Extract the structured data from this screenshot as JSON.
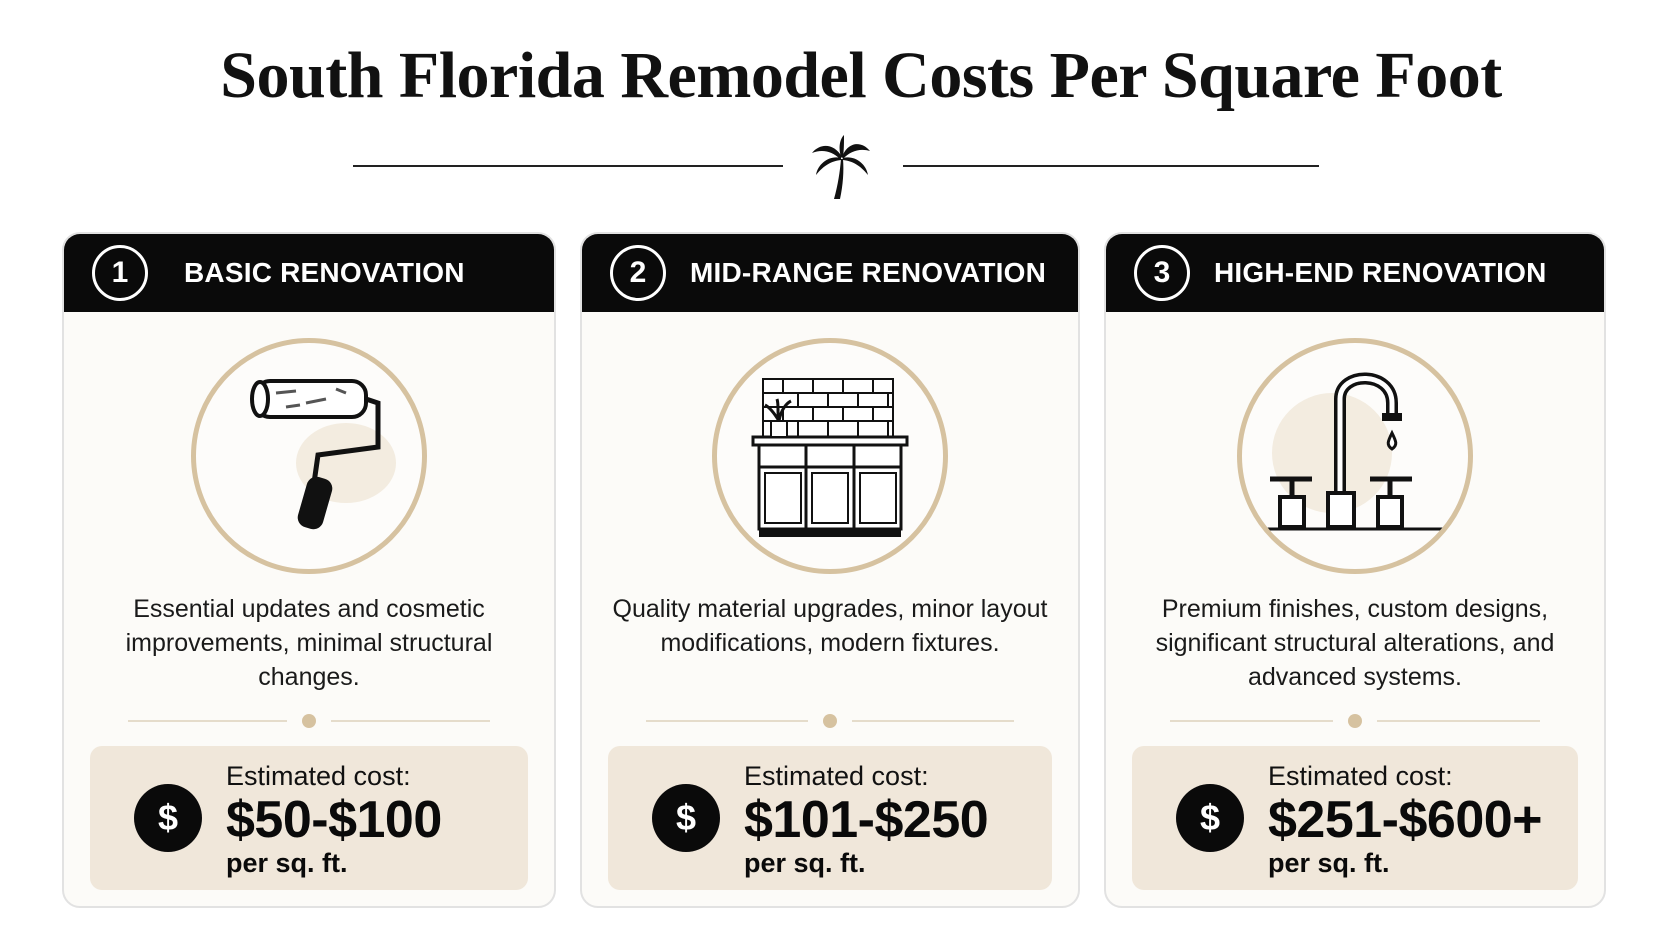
{
  "title": "South Florida Remodel Costs Per Square Foot",
  "cards": [
    {
      "number": "1",
      "title": "BASIC RENOVATION",
      "icon": "paint-roller-icon",
      "description": "Essential updates and cosmetic improvements, minimal structural changes.",
      "cost_label": "Estimated cost:",
      "cost_value": "$50-$100",
      "cost_unit": "per sq. ft."
    },
    {
      "number": "2",
      "title": "MID-RANGE RENOVATION",
      "icon": "kitchen-cabinet-icon",
      "description": "Quality material upgrades, minor layout modifications, modern fixtures.",
      "cost_label": "Estimated cost:",
      "cost_value": "$101-$250",
      "cost_unit": "per sq. ft."
    },
    {
      "number": "3",
      "title": "HIGH-END RENOVATION",
      "icon": "faucet-icon",
      "description": "Premium finishes, custom designs, significant structural alterations, and advanced systems.",
      "cost_label": "Estimated cost:",
      "cost_value": "$251-$600+",
      "cost_unit": "per sq. ft."
    }
  ],
  "dollar_symbol": "$",
  "colors": {
    "header": "#0a0a0a",
    "accent": "#d6c2a0",
    "cost_box": "#f0e7da",
    "card_bg": "#fcfbf8"
  }
}
